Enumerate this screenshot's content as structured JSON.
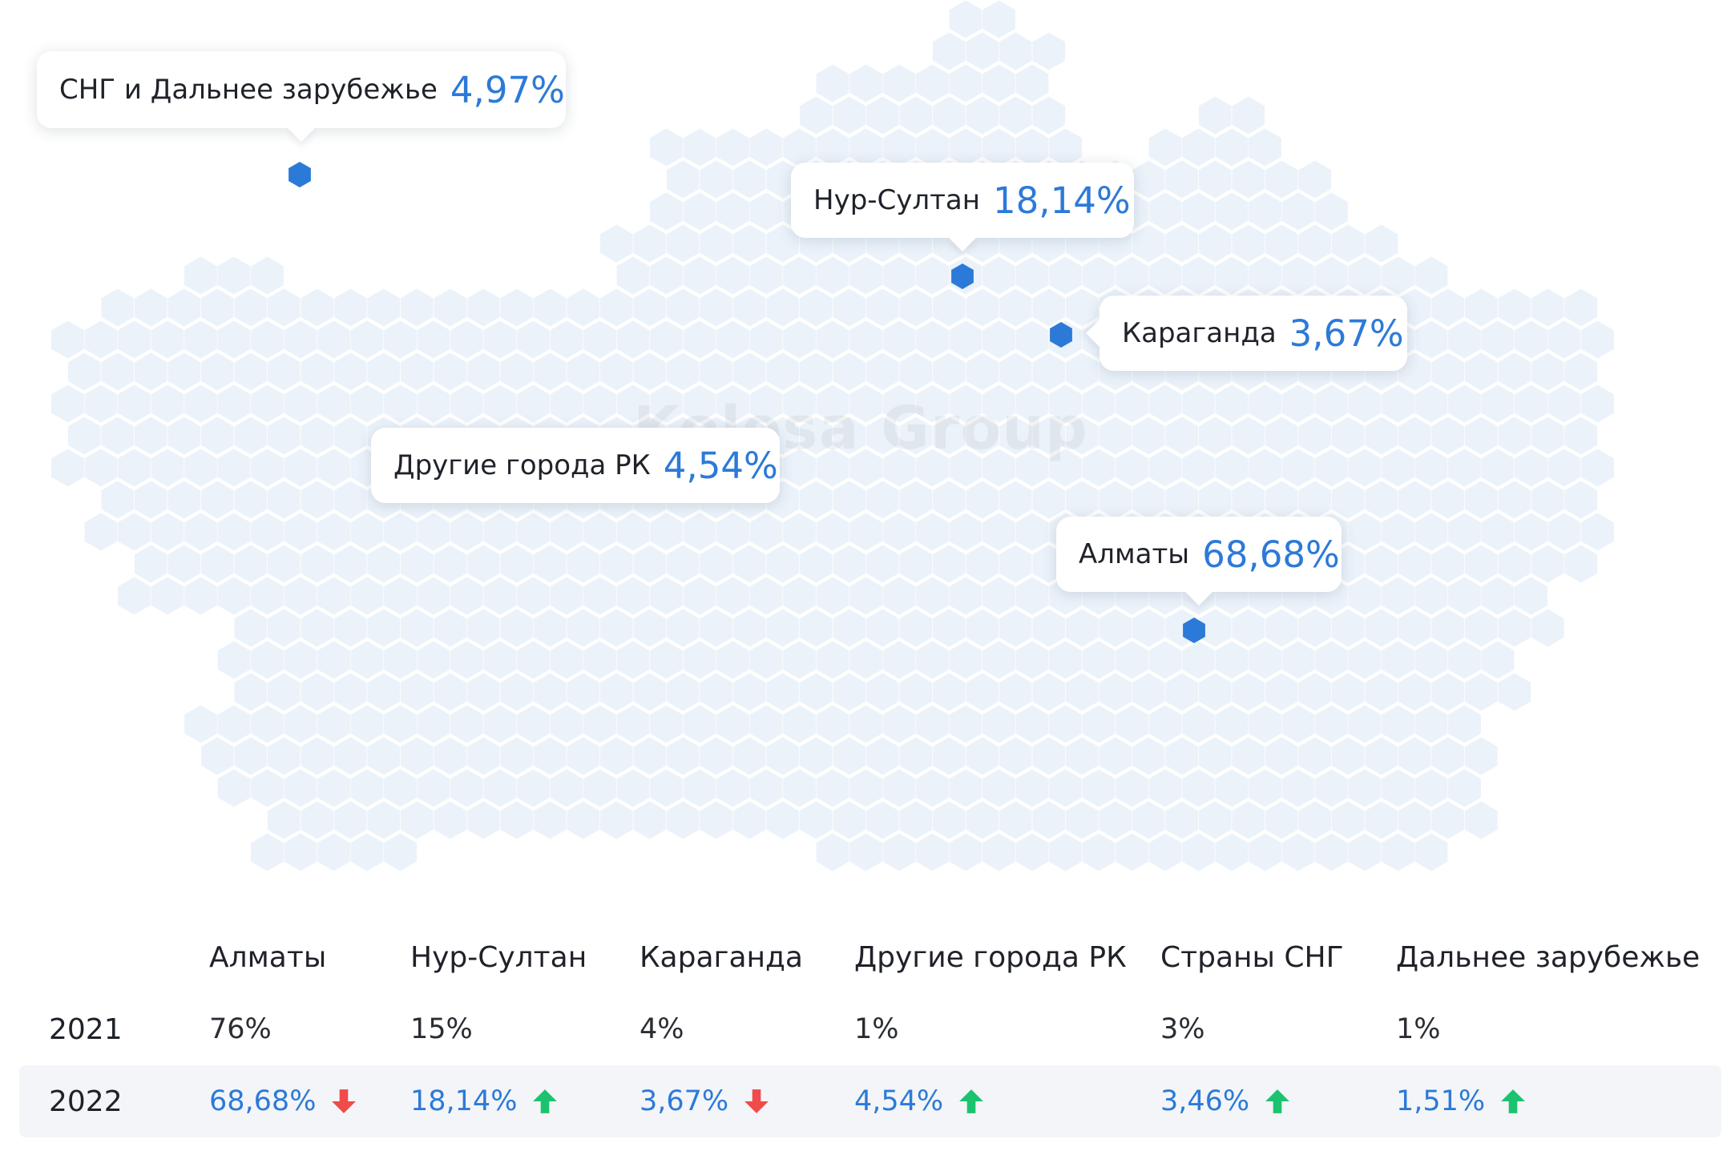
{
  "map": {
    "watermark": "Kolesa Group",
    "hex_fill": "#ebf2fa",
    "marker_color": "#2c7ad8",
    "callouts": [
      {
        "id": "cis",
        "name": "СНГ и Дальнее зарубежье",
        "value": "4,97%"
      },
      {
        "id": "nur-sultan",
        "name": "Нур-Султан",
        "value": "18,14%"
      },
      {
        "id": "karaganda",
        "name": "Караганда",
        "value": "3,67%"
      },
      {
        "id": "other-cities",
        "name": "Другие города РК",
        "value": "4,54%"
      },
      {
        "id": "almaty",
        "name": "Алматы",
        "value": "68,68%"
      }
    ]
  },
  "table": {
    "columns": [
      "Алматы",
      "Нур-Султан",
      "Караганда",
      "Другие города РК",
      "Страны СНГ",
      "Дальнее зарубежье"
    ],
    "rows": [
      {
        "year": "2021",
        "values": [
          "76%",
          "15%",
          "4%",
          "1%",
          "3%",
          "1%"
        ],
        "trends": [
          "",
          "",
          "",
          "",
          "",
          ""
        ]
      },
      {
        "year": "2022",
        "values": [
          "68,68%",
          "18,14%",
          "3,67%",
          "4,54%",
          "3,46%",
          "1,51%"
        ],
        "trends": [
          "down",
          "up",
          "down",
          "up",
          "up",
          "up"
        ]
      }
    ],
    "up_color": "#1cc36e",
    "down_color": "#ef4b4b"
  }
}
